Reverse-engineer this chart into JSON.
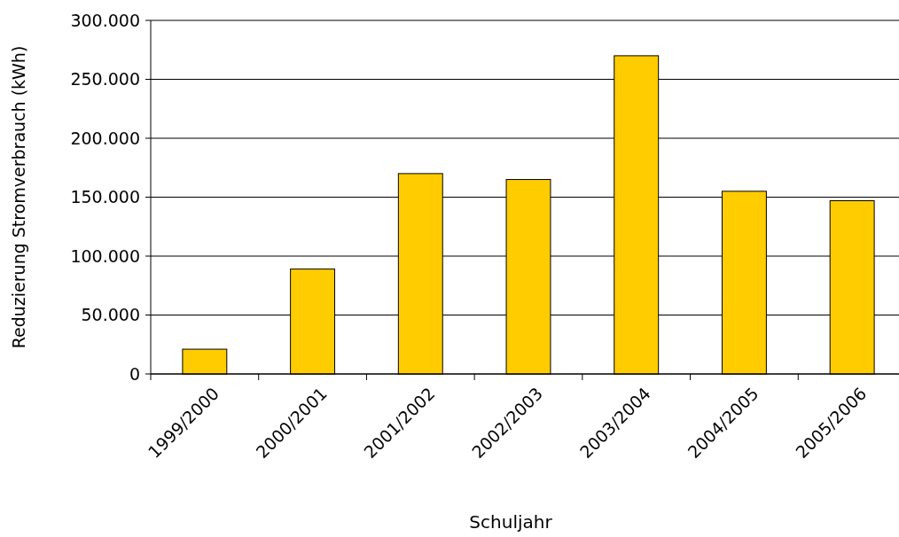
{
  "chart_data": {
    "type": "bar",
    "xlabel": "Schuljahr",
    "ylabel": "Reduzierung Stromverbrauch (kWh)",
    "categories": [
      "1999/2000",
      "2000/2001",
      "2001/2002",
      "2002/2003",
      "2003/2004",
      "2004/2005",
      "2005/2006"
    ],
    "values": [
      21000,
      89000,
      170000,
      165000,
      270000,
      155000,
      147000
    ],
    "color": "#ffcc00",
    "ylim": [
      0,
      300000
    ],
    "yticks": [
      0,
      {
        "value": 50000,
        "label": "50.000"
      },
      {
        "value": 100000,
        "label": "100.000"
      },
      {
        "value": 150000,
        "label": "150.000"
      },
      {
        "value": 200000,
        "label": "200.000"
      },
      {
        "value": 250000,
        "label": "250.000"
      },
      {
        "value": 300000,
        "label": "300.000"
      }
    ],
    "grid": "y"
  }
}
